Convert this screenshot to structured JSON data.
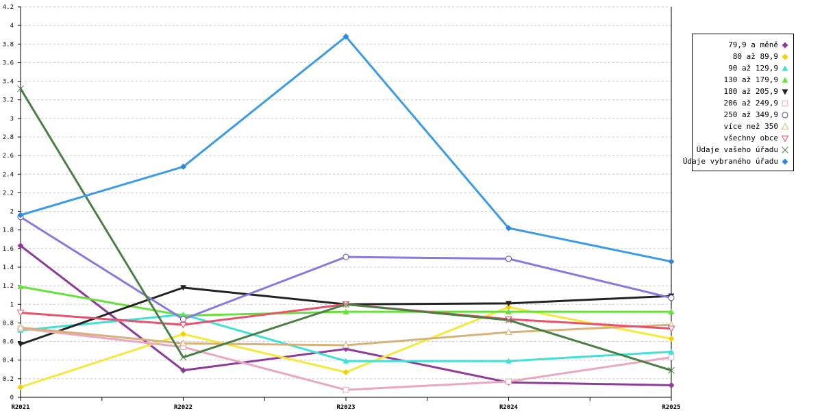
{
  "chart_data": {
    "type": "line",
    "title": "",
    "xlabel": "",
    "ylabel": "",
    "categories": [
      "R2021",
      "R2022",
      "R2023",
      "R2024",
      "R2025"
    ],
    "ylim": [
      0,
      4.2
    ],
    "yticks": [
      0,
      0.2,
      0.4,
      0.6,
      0.8,
      1,
      1.2,
      1.4,
      1.6,
      1.8,
      2,
      2.2,
      2.4,
      2.6,
      2.8,
      3,
      3.2,
      3.4,
      3.6,
      3.8,
      4,
      4.2
    ],
    "ytick_labels": [
      "0",
      "0.2",
      "0.4",
      "0.6",
      "0.8",
      "1",
      "1.2",
      "1.4",
      "1.6",
      "1.8",
      "2",
      "2.2",
      "2.4",
      "2.6",
      "2.8",
      "3",
      "3.2",
      "3.4",
      "3.6",
      "3.8",
      "4",
      "4.2"
    ],
    "grid": true,
    "legend_position": "top-right",
    "series": [
      {
        "name": "79,9 a měně",
        "color": "#8e3a9b",
        "marker": "diamond-filled",
        "values": [
          1.63,
          0.29,
          0.52,
          0.16,
          0.13
        ]
      },
      {
        "name": "80 až 89,9",
        "color": "#f5e83a",
        "marker_color": "#f5d000",
        "marker": "diamond-filled",
        "values": [
          0.11,
          0.68,
          0.27,
          0.97,
          0.63
        ]
      },
      {
        "name": "90 až 129,9",
        "color": "#40e0d8",
        "marker": "triangle-filled",
        "values": [
          0.72,
          0.89,
          0.39,
          0.39,
          0.49
        ]
      },
      {
        "name": "130 až 179,9",
        "color": "#66e13c",
        "marker": "triangle-filled",
        "values": [
          1.19,
          0.88,
          0.92,
          0.92,
          0.92
        ]
      },
      {
        "name": "180 až 205,9",
        "color": "#222222",
        "marker": "triangle-down-filled",
        "values": [
          0.57,
          1.18,
          1.0,
          1.01,
          1.09
        ]
      },
      {
        "name": "206 až 249,9",
        "color": "#eaa6c0",
        "marker": "square-open",
        "values": [
          0.74,
          0.54,
          0.08,
          0.17,
          0.43
        ]
      },
      {
        "name": "250 až 349,9",
        "color": "#8878e0",
        "marker_color": "#5a4ab0",
        "marker": "circle-open",
        "values": [
          1.94,
          0.84,
          1.51,
          1.49,
          1.07
        ]
      },
      {
        "name": "více než 350",
        "color": "#d8b17a",
        "marker": "triangle-open",
        "values": [
          0.75,
          0.58,
          0.56,
          0.7,
          0.78
        ]
      },
      {
        "name": "všechny obce",
        "color": "#e8506c",
        "marker": "triangle-down-open",
        "values": [
          0.91,
          0.78,
          1.0,
          0.84,
          0.74
        ]
      },
      {
        "name": "Údaje vašeho úřadu",
        "color": "#4a7f44",
        "marker": "x",
        "values": [
          3.32,
          0.43,
          1.0,
          0.83,
          0.29
        ]
      },
      {
        "name": "Údaje vybraného úřadu",
        "color": "#3b9ae8",
        "marker_color": "#2c88de",
        "marker": "diamond-filled",
        "values": [
          1.96,
          2.48,
          3.88,
          1.82,
          1.46
        ]
      }
    ]
  }
}
